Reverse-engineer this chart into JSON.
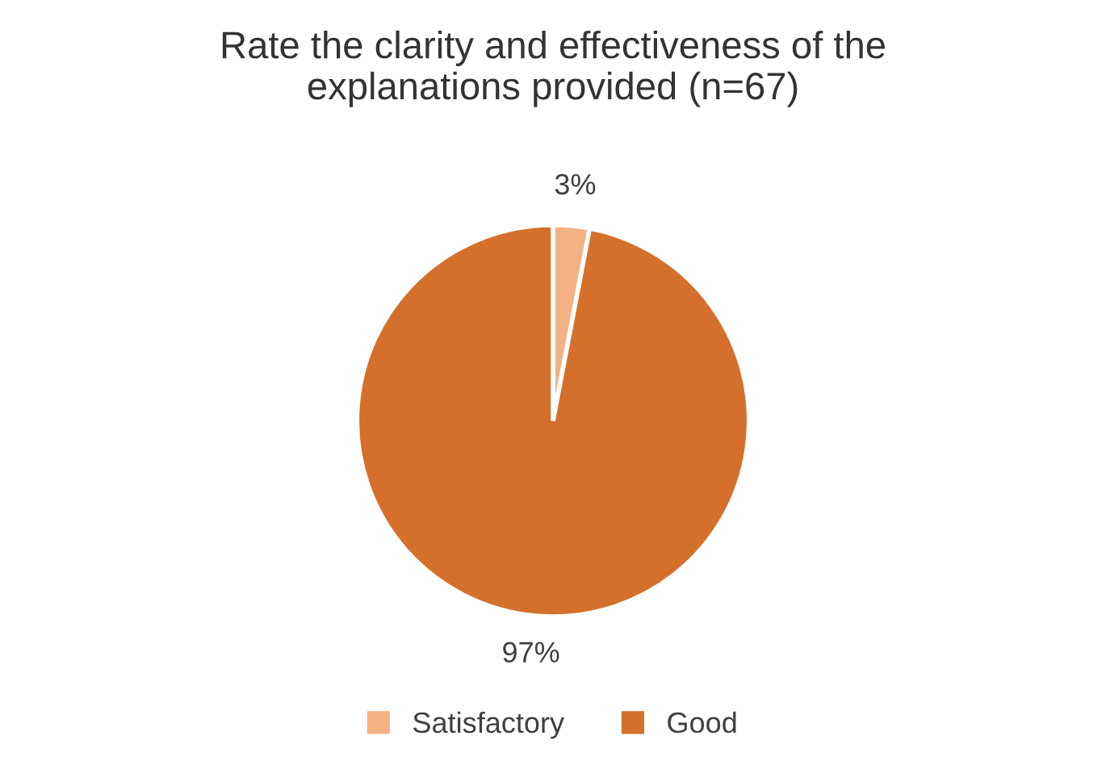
{
  "chart_data": {
    "type": "pie",
    "title": "Rate the clarity and effectiveness of the\nexplanations provided (n=67)",
    "categories": [
      "Satisfactory",
      "Good"
    ],
    "values": [
      3,
      97
    ],
    "colors": [
      "#f4b183",
      "#d4702b"
    ],
    "value_labels": [
      "3%",
      "97%"
    ],
    "legend": "bottom"
  }
}
